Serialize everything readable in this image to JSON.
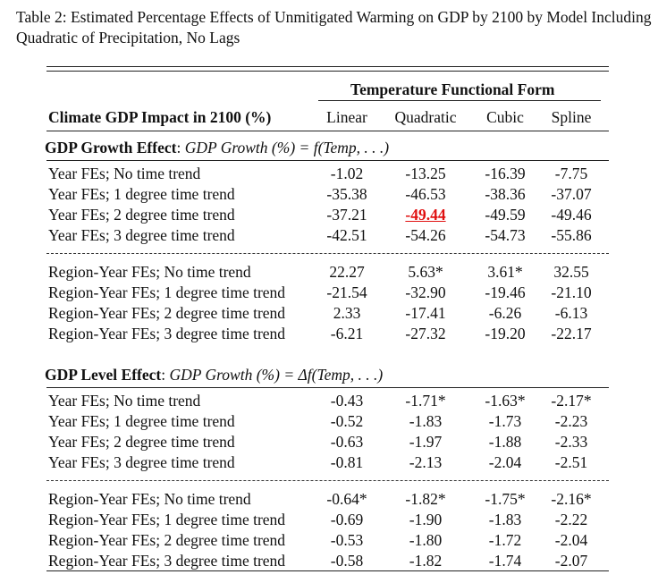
{
  "caption": "Table 2: Estimated Percentage Effects of Unmitigated Warming on GDP by 2100 by Model Including Quadratic of Precipitation, No Lags",
  "header": {
    "group_title": "Temperature Functional Form",
    "row_header": "Climate GDP Impact in 2100 (%)",
    "columns": [
      "Linear",
      "Quadratic",
      "Cubic",
      "Spline"
    ]
  },
  "sections": [
    {
      "title": "GDP Growth Effect",
      "formula": "GDP Growth (%) = f(Temp, . . .)",
      "blocks": [
        {
          "rows": [
            {
              "label": "Year FEs; No time trend",
              "values": [
                "-1.02",
                "-13.25",
                "-16.39",
                "-7.75"
              ]
            },
            {
              "label": "Year FEs; 1 degree time trend",
              "values": [
                "-35.38",
                "-46.53",
                "-38.36",
                "-37.07"
              ]
            },
            {
              "label": "Year FEs; 2 degree time trend",
              "values": [
                "-37.21",
                "-49.44",
                "-49.59",
                "-49.46"
              ]
            },
            {
              "label": "Year FEs; 3 degree time trend",
              "values": [
                "-42.51",
                "-54.26",
                "-54.73",
                "-55.86"
              ]
            }
          ]
        },
        {
          "rows": [
            {
              "label": "Region-Year FEs; No time trend",
              "values": [
                "22.27",
                "5.63*",
                "3.61*",
                "32.55"
              ]
            },
            {
              "label": "Region-Year FEs; 1 degree time trend",
              "values": [
                "-21.54",
                "-32.90",
                "-19.46",
                "-21.10"
              ]
            },
            {
              "label": "Region-Year FEs; 2 degree time trend",
              "values": [
                "2.33",
                "-17.41",
                "-6.26",
                "-6.13"
              ]
            },
            {
              "label": "Region-Year FEs; 3 degree time trend",
              "values": [
                "-6.21",
                "-27.32",
                "-19.20",
                "-22.17"
              ]
            }
          ]
        }
      ]
    },
    {
      "title": "GDP Level Effect",
      "formula": "GDP Growth (%) = Δf(Temp, . . .)",
      "blocks": [
        {
          "rows": [
            {
              "label": "Year FEs; No time trend",
              "values": [
                "-0.43",
                "-1.71*",
                "-1.63*",
                "-2.17*"
              ]
            },
            {
              "label": "Year FEs; 1 degree time trend",
              "values": [
                "-0.52",
                "-1.83",
                "-1.73",
                "-2.23"
              ]
            },
            {
              "label": "Year FEs; 2 degree time trend",
              "values": [
                "-0.63",
                "-1.97",
                "-1.88",
                "-2.33"
              ]
            },
            {
              "label": "Year FEs; 3 degree time trend",
              "values": [
                "-0.81",
                "-2.13",
                "-2.04",
                "-2.51"
              ]
            }
          ]
        },
        {
          "rows": [
            {
              "label": "Region-Year FEs; No time trend",
              "values": [
                "-0.64*",
                "-1.82*",
                "-1.75*",
                "-2.16*"
              ]
            },
            {
              "label": "Region-Year FEs; 1 degree time trend",
              "values": [
                "-0.69",
                "-1.90",
                "-1.83",
                "-2.22"
              ]
            },
            {
              "label": "Region-Year FEs; 2 degree time trend",
              "values": [
                "-0.53",
                "-1.80",
                "-1.72",
                "-2.04"
              ]
            },
            {
              "label": "Region-Year FEs; 3 degree time trend",
              "values": [
                "-0.58",
                "-1.82",
                "-1.74",
                "-2.07"
              ]
            }
          ]
        }
      ]
    }
  ],
  "highlight": {
    "section": 0,
    "block": 0,
    "row": 2,
    "col": 1,
    "color": "#e01010"
  }
}
